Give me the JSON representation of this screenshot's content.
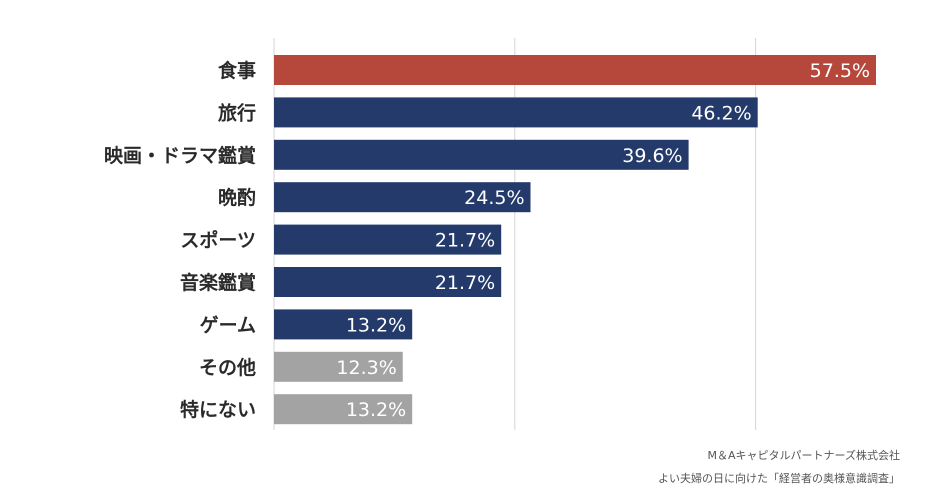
{
  "chart_data": {
    "type": "bar",
    "orientation": "horizontal",
    "categories": [
      "食事",
      "旅行",
      "映画・ドラマ鑑賞",
      "晩酌",
      "スポーツ",
      "音楽鑑賞",
      "ゲーム",
      "その他",
      "特にない"
    ],
    "values": [
      57.5,
      46.2,
      39.6,
      24.5,
      21.7,
      21.7,
      13.2,
      12.3,
      13.2
    ],
    "value_labels": [
      "57.5%",
      "46.2%",
      "39.6%",
      "24.5%",
      "21.7%",
      "21.7%",
      "13.2%",
      "12.3%",
      "13.2%"
    ],
    "unit": "%",
    "xlim": [
      0,
      57.5
    ],
    "grid": true,
    "legend": "none",
    "colors": {
      "highlight": "#b5473b",
      "main": "#233a6b",
      "other": "#a3a3a3",
      "gridline": "#d4d4d4",
      "label_inside": "#ffffff",
      "label_outside": "#333333"
    },
    "bar_color_keys": [
      "highlight",
      "main",
      "main",
      "main",
      "main",
      "main",
      "main",
      "other",
      "other"
    ]
  },
  "source": {
    "line1": "M＆Aキャピタルパートナーズ株式会社",
    "line2": "よい夫婦の日に向けた「経営者の奥様意識調査」"
  }
}
